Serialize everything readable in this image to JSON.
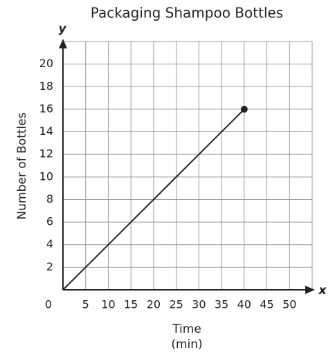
{
  "chart_data": {
    "type": "line",
    "title": "Packaging Shampoo Bottles",
    "x_label": [
      "Time",
      "(min)"
    ],
    "y_label": "Number of Bottles",
    "x_axis_name": "x",
    "y_axis_name": "y",
    "xlim": [
      0,
      55
    ],
    "ylim": [
      0,
      22
    ],
    "xticks": [
      0,
      5,
      10,
      15,
      20,
      25,
      30,
      35,
      40,
      45,
      50
    ],
    "yticks": [
      2,
      4,
      6,
      8,
      10,
      12,
      14,
      16,
      18,
      20
    ],
    "grid": true,
    "series": [
      {
        "color": "#222222",
        "x": [
          0,
          40
        ],
        "values": [
          0,
          16
        ],
        "end_marker": true
      }
    ]
  }
}
